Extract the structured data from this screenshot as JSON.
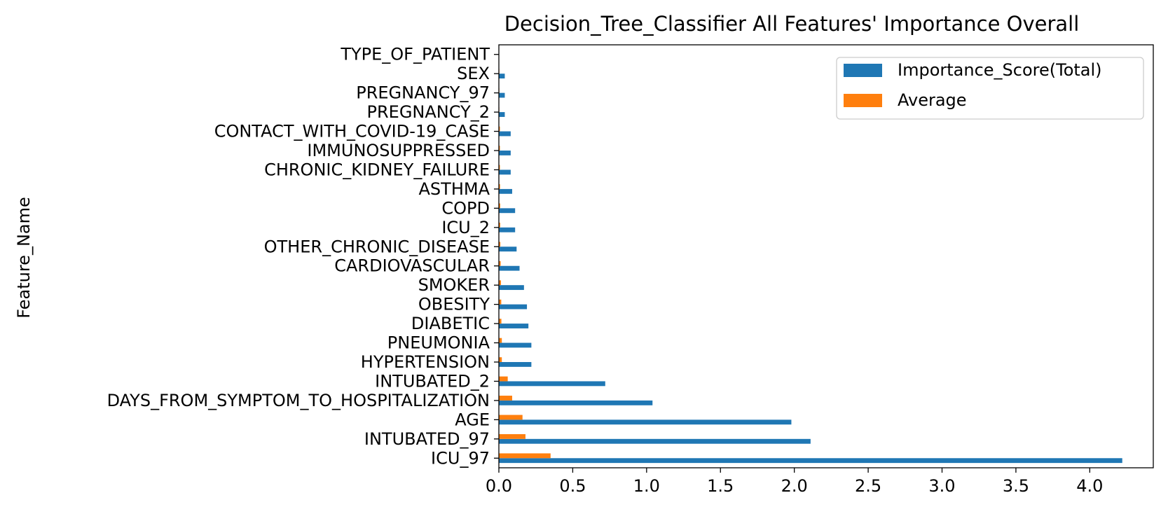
{
  "chart_data": {
    "type": "bar",
    "orientation": "horizontal",
    "title": "Decision_Tree_Classifier All Features' Importance Overall",
    "xlabel": "",
    "ylabel": "Feature_Name",
    "xlim": [
      0,
      4.43
    ],
    "xticks": [
      "0.0",
      "0.5",
      "1.0",
      "1.5",
      "2.0",
      "2.5",
      "3.0",
      "3.5",
      "4.0"
    ],
    "grid": false,
    "legend_position": "top-right",
    "categories": [
      "ICU_97",
      "INTUBATED_97",
      "AGE",
      "DAYS_FROM_SYMPTOM_TO_HOSPITALIZATION",
      "INTUBATED_2",
      "HYPERTENSION",
      "PNEUMONIA",
      "DIABETIC",
      "OBESITY",
      "SMOKER",
      "CARDIOVASCULAR",
      "OTHER_CHRONIC_DISEASE",
      "ICU_2",
      "COPD",
      "ASTHMA",
      "CHRONIC_KIDNEY_FAILURE",
      "IMMUNOSUPPRESSED",
      "CONTACT_WITH_COVID-19_CASE",
      "PREGNANCY_2",
      "PREGNANCY_97",
      "SEX",
      "TYPE_OF_PATIENT"
    ],
    "series": [
      {
        "name": "Importance_Score(Total)",
        "color": "#1f77b4",
        "values": [
          4.22,
          2.11,
          1.98,
          1.04,
          0.72,
          0.22,
          0.22,
          0.2,
          0.19,
          0.17,
          0.14,
          0.12,
          0.11,
          0.11,
          0.09,
          0.08,
          0.08,
          0.08,
          0.04,
          0.04,
          0.04,
          0.0
        ]
      },
      {
        "name": "Average",
        "color": "#ff7f0e",
        "values": [
          0.35,
          0.18,
          0.16,
          0.09,
          0.06,
          0.02,
          0.02,
          0.017,
          0.016,
          0.014,
          0.012,
          0.01,
          0.009,
          0.009,
          0.008,
          0.007,
          0.007,
          0.007,
          0.003,
          0.003,
          0.003,
          0.0
        ]
      }
    ]
  }
}
